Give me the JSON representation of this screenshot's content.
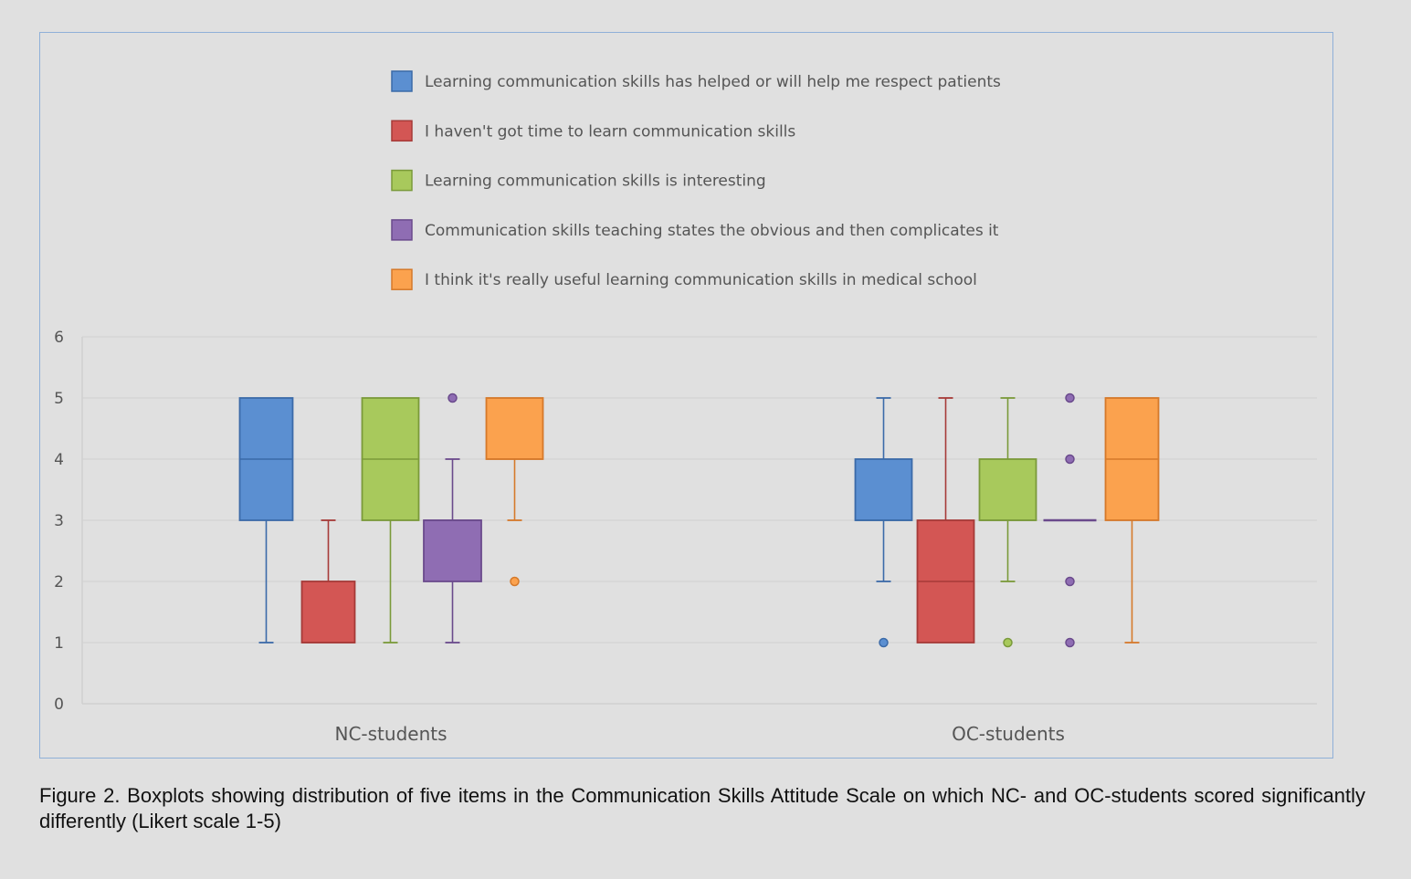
{
  "chart_data": {
    "type": "boxplot",
    "title": "",
    "xlabel": "",
    "ylabel": "",
    "ylim": [
      0,
      6
    ],
    "yticks": [
      0,
      1,
      2,
      3,
      4,
      5,
      6
    ],
    "grid": true,
    "legend_position": "top",
    "categories": [
      "NC-students",
      "OC-students"
    ],
    "series": [
      {
        "name": "Learning communication skills has helped or will help me respect patients",
        "color": "#5b8fd1",
        "stroke": "#3b6aa8",
        "boxes": [
          {
            "whisker_low": 1,
            "q1": 3,
            "median": 4,
            "q3": 5,
            "whisker_high": 5,
            "outliers": []
          },
          {
            "whisker_low": 2,
            "q1": 3,
            "median": 3,
            "q3": 4,
            "whisker_high": 5,
            "outliers": [
              1
            ]
          }
        ]
      },
      {
        "name": "I haven't got time to learn communication skills",
        "color": "#d35654",
        "stroke": "#a63a38",
        "boxes": [
          {
            "whisker_low": 1,
            "q1": 1,
            "median": 1,
            "q3": 2,
            "whisker_high": 3,
            "outliers": []
          },
          {
            "whisker_low": 1,
            "q1": 1,
            "median": 2,
            "q3": 3,
            "whisker_high": 5,
            "outliers": []
          }
        ]
      },
      {
        "name": "Learning communication skills is interesting",
        "color": "#a8c95c",
        "stroke": "#7a9a3a",
        "boxes": [
          {
            "whisker_low": 1,
            "q1": 3,
            "median": 4,
            "q3": 5,
            "whisker_high": 5,
            "outliers": []
          },
          {
            "whisker_low": 2,
            "q1": 3,
            "median": 3,
            "q3": 4,
            "whisker_high": 5,
            "outliers": [
              1
            ]
          }
        ]
      },
      {
        "name": "Communication skills teaching states the obvious and then complicates it",
        "color": "#8f6db3",
        "stroke": "#6a4a8c",
        "boxes": [
          {
            "whisker_low": 1,
            "q1": 2,
            "median": 3,
            "q3": 3,
            "whisker_high": 4,
            "outliers": [
              5
            ]
          },
          {
            "whisker_low": 3,
            "q1": 3,
            "median": 3,
            "q3": 3,
            "whisker_high": 3,
            "outliers": [
              1,
              2,
              4,
              5
            ]
          }
        ]
      },
      {
        "name": "I think it's really useful learning communication skills in medical school",
        "color": "#fba24e",
        "stroke": "#d5792a",
        "boxes": [
          {
            "whisker_low": 3,
            "q1": 4,
            "median": 4,
            "q3": 5,
            "whisker_high": 5,
            "outliers": [
              2
            ]
          },
          {
            "whisker_low": 1,
            "q1": 3,
            "median": 4,
            "q3": 5,
            "whisker_high": 5,
            "outliers": []
          }
        ]
      }
    ]
  },
  "caption": "Figure 2. Boxplots showing distribution of five items in the Communication Skills Attitude Scale on which NC- and OC-students scored significantly differently (Likert scale 1-5)"
}
